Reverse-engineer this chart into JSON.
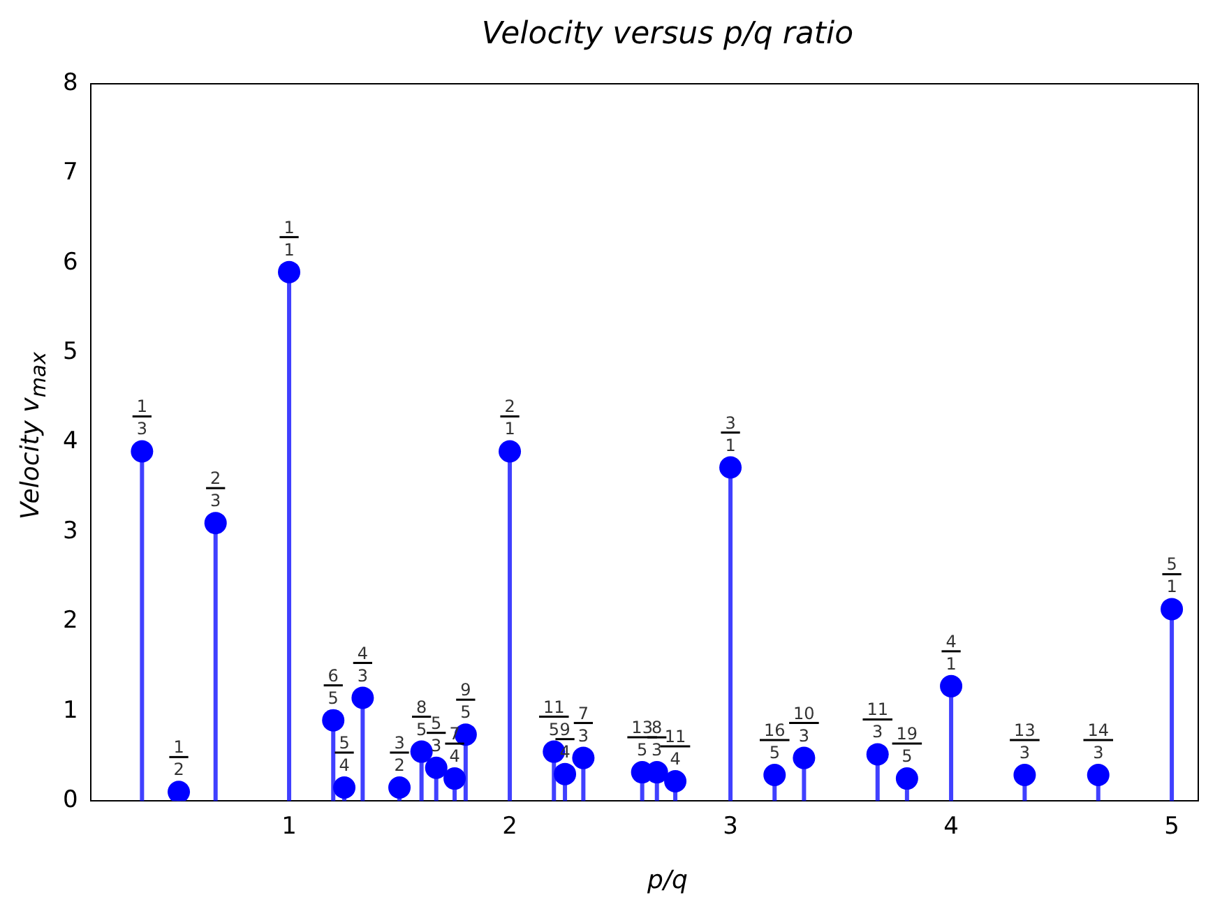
{
  "chart_data": {
    "type": "lollipop",
    "title": "Velocity versus p/q ratio",
    "xlabel": "p/q",
    "ylabel": "Velocity v$_{max}$",
    "x": [
      0.3333,
      0.5,
      0.6667,
      1,
      1.2,
      1.25,
      1.3333,
      1.5,
      1.6,
      1.6667,
      1.75,
      1.8,
      2,
      2.2,
      2.25,
      2.3333,
      2.6,
      2.6667,
      2.75,
      3,
      3.2,
      3.3333,
      3.6667,
      3.8,
      4,
      4.3333,
      4.6667,
      5
    ],
    "series": [
      {
        "color": "#0000ff",
        "values": [
          3.9,
          0.1,
          3.1,
          5.9,
          0.9,
          0.15,
          1.15,
          0.15,
          0.55,
          0.37,
          0.25,
          0.74,
          3.9,
          0.55,
          0.3,
          0.48,
          0.32,
          0.32,
          0.22,
          3.72,
          0.29,
          0.48,
          0.52,
          0.25,
          1.28,
          0.29,
          0.29,
          2.14
        ]
      }
    ],
    "xlim": [
      0.1,
      5.12
    ],
    "ylim": [
      0,
      8
    ],
    "xticks": [
      1,
      2,
      3,
      4,
      5
    ],
    "yticks": [
      0,
      1,
      2,
      3,
      4,
      5,
      6,
      7,
      8
    ],
    "marker": "circle",
    "legend": false,
    "grid": false,
    "annotations": [
      {
        "text": "1\n3",
        "x": 0.3333,
        "y": 3.9
      },
      {
        "text": "1\n2",
        "x": 0.5,
        "y": 0.1
      },
      {
        "text": "2\n3",
        "x": 0.6667,
        "y": 3.1
      },
      {
        "text": "1\n1",
        "x": 1,
        "y": 5.9
      },
      {
        "text": "6\n5",
        "x": 1.2,
        "y": 0.9
      },
      {
        "text": "5\n4",
        "x": 1.25,
        "y": 0.15
      },
      {
        "text": "4\n3",
        "x": 1.3333,
        "y": 1.15
      },
      {
        "text": "3\n2",
        "x": 1.5,
        "y": 0.15
      },
      {
        "text": "8\n5",
        "x": 1.6,
        "y": 0.55
      },
      {
        "text": "5\n3",
        "x": 1.6667,
        "y": 0.37
      },
      {
        "text": "7\n4",
        "x": 1.75,
        "y": 0.25
      },
      {
        "text": "9\n5",
        "x": 1.8,
        "y": 0.74
      },
      {
        "text": "2\n1",
        "x": 2,
        "y": 3.9
      },
      {
        "text": "11\n5",
        "x": 2.2,
        "y": 0.55
      },
      {
        "text": "9\n4",
        "x": 2.25,
        "y": 0.3
      },
      {
        "text": "7\n3",
        "x": 2.3333,
        "y": 0.48
      },
      {
        "text": "13\n5",
        "x": 2.6,
        "y": 0.32
      },
      {
        "text": "8\n3",
        "x": 2.6667,
        "y": 0.32
      },
      {
        "text": "11\n4",
        "x": 2.75,
        "y": 0.22
      },
      {
        "text": "3\n1",
        "x": 3,
        "y": 3.72
      },
      {
        "text": "16\n5",
        "x": 3.2,
        "y": 0.29
      },
      {
        "text": "10\n3",
        "x": 3.3333,
        "y": 0.48
      },
      {
        "text": "11\n3",
        "x": 3.6667,
        "y": 0.52
      },
      {
        "text": "19\n5",
        "x": 3.8,
        "y": 0.25
      },
      {
        "text": "4\n1",
        "x": 4,
        "y": 1.28
      },
      {
        "text": "13\n3",
        "x": 4.3333,
        "y": 0.29
      },
      {
        "text": "14\n3",
        "x": 4.6667,
        "y": 0.29
      },
      {
        "text": "5\n1",
        "x": 5,
        "y": 2.14
      }
    ]
  }
}
